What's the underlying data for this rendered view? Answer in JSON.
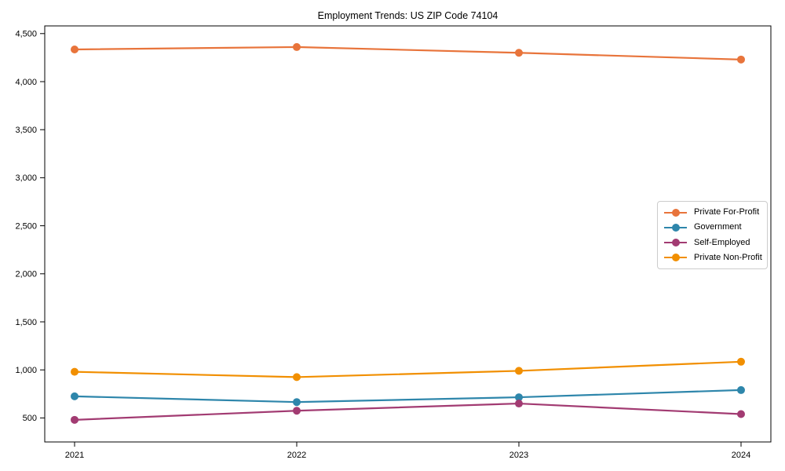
{
  "chart_data": {
    "type": "line",
    "title": "Employment Trends: US ZIP Code 74104",
    "xlabel": "",
    "ylabel": "",
    "x": [
      "2021",
      "2022",
      "2023",
      "2024"
    ],
    "series": [
      {
        "name": "Private For-Profit",
        "color": "#E8743B",
        "values": [
          4335,
          4360,
          4300,
          4230
        ]
      },
      {
        "name": "Government",
        "color": "#2E86AB",
        "values": [
          725,
          665,
          715,
          790
        ]
      },
      {
        "name": "Self-Employed",
        "color": "#A23B72",
        "values": [
          480,
          575,
          650,
          540
        ]
      },
      {
        "name": "Private Non-Profit",
        "color": "#F18F01",
        "values": [
          980,
          925,
          990,
          1085
        ]
      }
    ],
    "ylim": [
      250,
      4580
    ],
    "yticks": [
      500,
      1000,
      1500,
      2000,
      2500,
      3000,
      3500,
      4000,
      4500
    ],
    "ytick_labels": [
      "500",
      "1,000",
      "1,500",
      "2,000",
      "2,500",
      "3,000",
      "3,500",
      "4,000",
      "4,500"
    ],
    "grid": false,
    "legend_position": "center-right",
    "marker": "circle"
  }
}
